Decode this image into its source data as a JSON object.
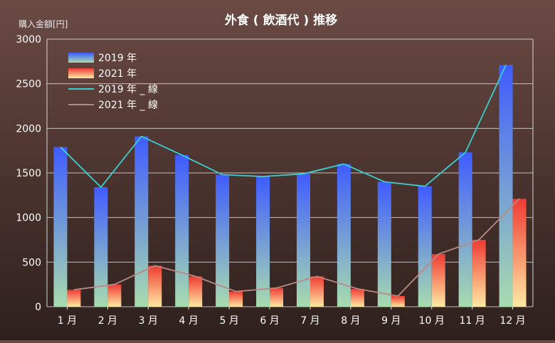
{
  "chart_data": {
    "type": "bar",
    "title": "外食 ( 飲酒代 ) 推移",
    "ylabel": "購入金額[円]",
    "xlabel": "",
    "ylim": [
      0,
      3000
    ],
    "yticks": [
      0,
      500,
      1000,
      1500,
      2000,
      2500,
      3000
    ],
    "grid": true,
    "legend_position": "top-left",
    "categories": [
      "1 月",
      "2 月",
      "3 月",
      "4 月",
      "5 月",
      "6 月",
      "7 月",
      "8 月",
      "9 月",
      "10 月",
      "11 月",
      "12 月"
    ],
    "series": [
      {
        "name": "2019 年",
        "kind": "bar",
        "values": [
          1790,
          1340,
          1910,
          1700,
          1480,
          1460,
          1490,
          1600,
          1400,
          1350,
          1730,
          2710
        ]
      },
      {
        "name": "2021 年",
        "kind": "bar",
        "values": [
          190,
          250,
          460,
          340,
          170,
          210,
          340,
          200,
          120,
          590,
          750,
          1210
        ]
      },
      {
        "name": "2019 年 _ 線",
        "kind": "line",
        "values": [
          1790,
          1340,
          1910,
          1700,
          1480,
          1460,
          1490,
          1600,
          1400,
          1350,
          1730,
          2710
        ]
      },
      {
        "name": "2021 年 _ 線",
        "kind": "line",
        "values": [
          190,
          250,
          460,
          340,
          170,
          210,
          340,
          200,
          120,
          590,
          750,
          1210
        ]
      }
    ],
    "colors": {
      "bar2019_top": "#3f5cff",
      "bar2019_bottom": "#a8dcae",
      "bar2021_top": "#ee3b33",
      "bar2021_bottom": "#ffe9a3",
      "line2019": "#3ccfcf",
      "line2021": "#b78a86",
      "grid": "#d9d9d9",
      "text": "#ffffff"
    }
  }
}
